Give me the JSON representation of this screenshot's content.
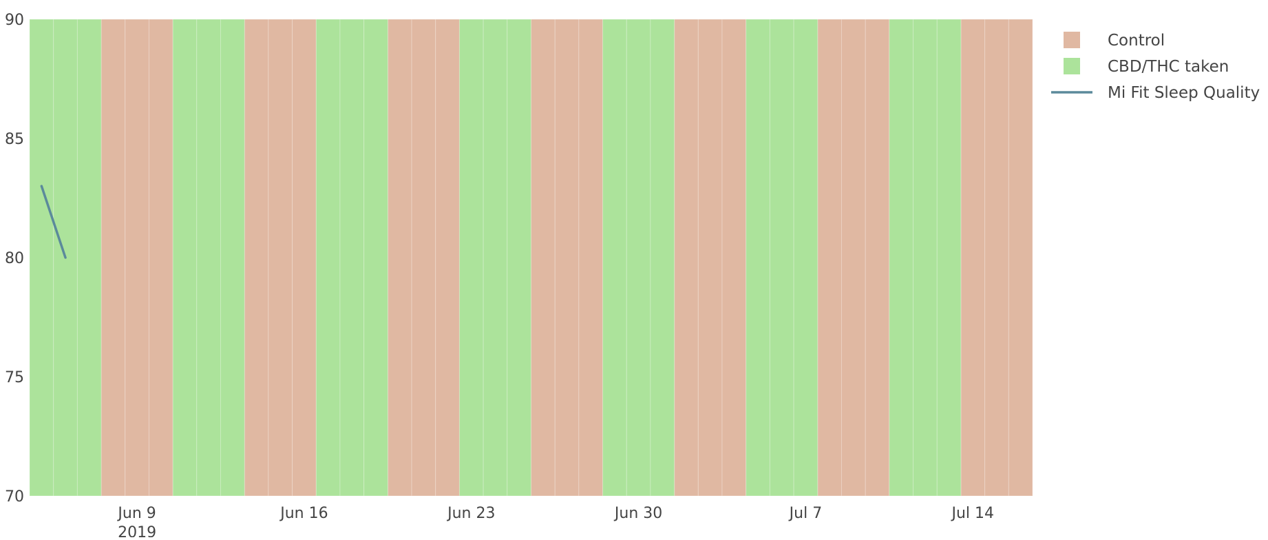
{
  "chart_data": {
    "type": "bar",
    "title": "",
    "xlabel": "",
    "ylabel": "",
    "ylim": [
      70,
      90
    ],
    "xlim": [
      "2019-06-05",
      "2019-07-16"
    ],
    "y_ticks": [
      {
        "value": 70,
        "label": "70"
      },
      {
        "value": 75,
        "label": "75"
      },
      {
        "value": 80,
        "label": "80"
      },
      {
        "value": 85,
        "label": "85"
      },
      {
        "value": 90,
        "label": "90"
      }
    ],
    "x_ticks": [
      {
        "date": "2019-06-09",
        "label": "Jun 9",
        "sublabel": "2019"
      },
      {
        "date": "2019-06-16",
        "label": "Jun 16"
      },
      {
        "date": "2019-06-23",
        "label": "Jun 23"
      },
      {
        "date": "2019-06-30",
        "label": "Jun 30"
      },
      {
        "date": "2019-07-07",
        "label": "Jul 7"
      },
      {
        "date": "2019-07-14",
        "label": "Jul 14"
      }
    ],
    "grid": false,
    "legend_position": "top-right",
    "series": [
      {
        "name": "Control",
        "kind": "bar",
        "color": "#e0b8a2",
        "value": 90,
        "dates": [
          "2019-06-08",
          "2019-06-09",
          "2019-06-10",
          "2019-06-14",
          "2019-06-15",
          "2019-06-16",
          "2019-06-20",
          "2019-06-21",
          "2019-06-22",
          "2019-06-26",
          "2019-06-27",
          "2019-06-28",
          "2019-07-02",
          "2019-07-03",
          "2019-07-04",
          "2019-07-08",
          "2019-07-09",
          "2019-07-10",
          "2019-07-14",
          "2019-07-15",
          "2019-07-16"
        ]
      },
      {
        "name": "CBD/THC taken",
        "kind": "bar",
        "color": "#ace39b",
        "value": 90,
        "dates": [
          "2019-06-05",
          "2019-06-06",
          "2019-06-07",
          "2019-06-11",
          "2019-06-12",
          "2019-06-13",
          "2019-06-17",
          "2019-06-18",
          "2019-06-19",
          "2019-06-23",
          "2019-06-24",
          "2019-06-25",
          "2019-06-29",
          "2019-06-30",
          "2019-07-01",
          "2019-07-05",
          "2019-07-06",
          "2019-07-07",
          "2019-07-11",
          "2019-07-12",
          "2019-07-13"
        ]
      },
      {
        "name": "Mi Fit Sleep Quality",
        "kind": "line",
        "color": "#5b8a9b",
        "x": [
          "2019-06-05",
          "2019-06-06"
        ],
        "y": [
          83,
          80
        ]
      }
    ]
  }
}
